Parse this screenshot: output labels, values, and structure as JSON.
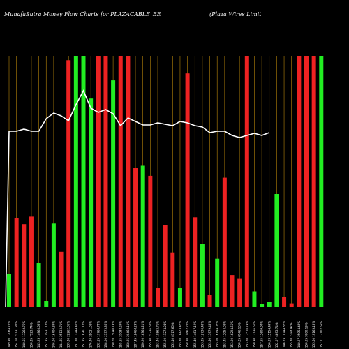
{
  "chart_data": {
    "type": "bar",
    "title_left": "MunafaSutra  Money Flow  Charts for PLAZACABLE_BE",
    "title_right": "(Plaza  Wires Limit",
    "categories": [
      "149.90 17064.76%",
      "154.60 21131.82%",
      "148.55 17268.76%",
      "150.85 7123.74%",
      "143.25 14968.58%",
      "157.35 14931.17%",
      "146.00 16400.39%",
      "144.85 25133.71%",
      "139.80 22262.06%",
      "151.50 11244.40%",
      "151.85 16261.17%",
      "176.40 25021.02%",
      "132.15 17768.78%",
      "138.00 21373.36%",
      "150.20 15040.19%",
      "155.65 21088.29%",
      "168.95 20468.11%",
      "187.45 18468.29%",
      "160.20 16364.21%",
      "155.90 21336.62%",
      "153.46 10862.71%",
      "155.00 11274.24%",
      "153.40 8117.66%",
      "155.30 18423.42%",
      "158.80 14667.72%",
      "155.40 14617.12%",
      "153.85 12730.43%",
      "153.50 17979.45%",
      "155.00 16194.02%",
      "153.45 12954.02%",
      "153.00 16294.55%",
      "150.25 8146.16%",
      "153.60 17516.74%",
      "150.90 12136.56%",
      "157.55 12609.94%",
      "156.09 15154.49%",
      "152.07 4895.74%",
      "146.75 10744.82%",
      "155.40 7384.97%",
      "148.27 25054.48%",
      "150.05 9000.19%",
      "155.60 19165.18%",
      "157.11 13102.55%"
    ],
    "colors": [
      "green",
      "red",
      "red",
      "red",
      "green",
      "green",
      "green",
      "red",
      "red",
      "green",
      "green",
      "green",
      "red",
      "red",
      "green",
      "red",
      "red",
      "red",
      "green",
      "red",
      "red",
      "red",
      "red",
      "green",
      "red",
      "red",
      "green",
      "red",
      "green",
      "red",
      "red",
      "red",
      "red",
      "green",
      "green",
      "green",
      "green",
      "red",
      "red",
      "red",
      "red",
      "red",
      "green"
    ],
    "values": [
      53,
      142,
      132,
      144,
      70,
      10,
      133,
      88,
      393,
      400,
      400,
      332,
      400,
      400,
      361,
      400,
      400,
      222,
      225,
      209,
      31,
      131,
      87,
      31,
      372,
      143,
      101,
      20,
      77,
      206,
      51,
      46,
      400,
      25,
      5,
      8,
      180,
      16,
      6,
      400,
      400,
      400,
      400
    ],
    "line_values": [
      252,
      252,
      255,
      252,
      252,
      270,
      278,
      274,
      267,
      290,
      310,
      285,
      279,
      283,
      277,
      260,
      271,
      266,
      261,
      261,
      264,
      262,
      260,
      266,
      264,
      260,
      258,
      250,
      252,
      252,
      246,
      243,
      246,
      249,
      246,
      250
    ],
    "ylim": [
      0,
      400
    ],
    "grid": true,
    "colors_map": {
      "green": "#22ee22",
      "red": "#ee2222",
      "line": "#ffffff",
      "grid": "#b8860b",
      "background": "#000000"
    }
  }
}
